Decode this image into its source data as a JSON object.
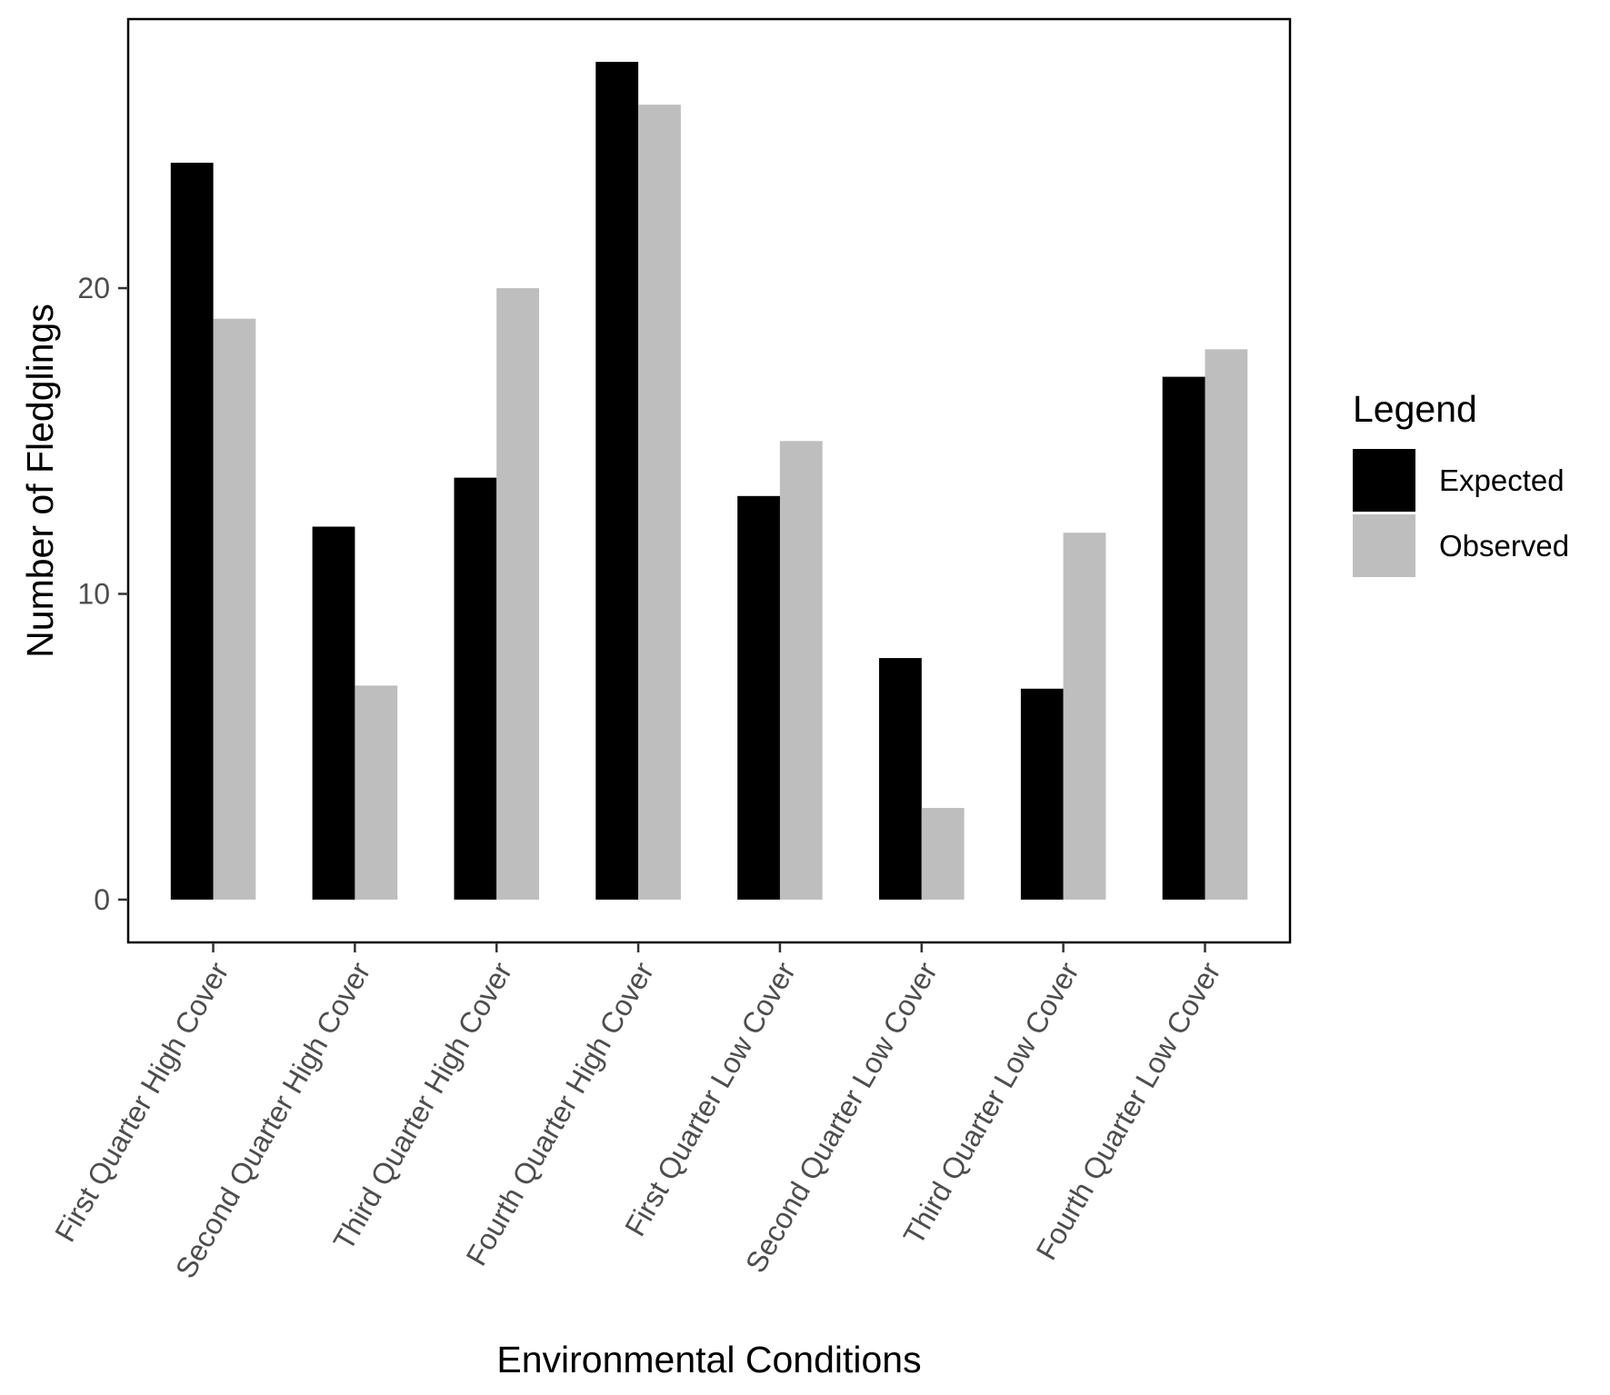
{
  "chart_data": {
    "type": "bar",
    "title": "",
    "xlabel": "Environmental Conditions",
    "ylabel": "Number of Fledglings",
    "ylim": [
      -1.4,
      28.8
    ],
    "yticks": [
      0,
      10,
      20
    ],
    "grid": false,
    "legend_position": "right",
    "legend_title": "Legend",
    "categories": [
      "First Quarter High Cover",
      "Second Quarter High Cover",
      "Third Quarter High Cover",
      "Fourth Quarter High Cover",
      "First Quarter Low Cover",
      "Second Quarter Low Cover",
      "Third Quarter Low Cover",
      "Fourth Quarter Low Cover"
    ],
    "series": [
      {
        "name": "Expected",
        "color": "#000000",
        "values": [
          24.1,
          12.2,
          13.8,
          27.4,
          13.2,
          7.9,
          6.9,
          17.1
        ]
      },
      {
        "name": "Observed",
        "color": "#bebebe",
        "values": [
          19,
          7,
          20,
          26,
          15,
          3,
          12,
          18
        ]
      }
    ]
  }
}
